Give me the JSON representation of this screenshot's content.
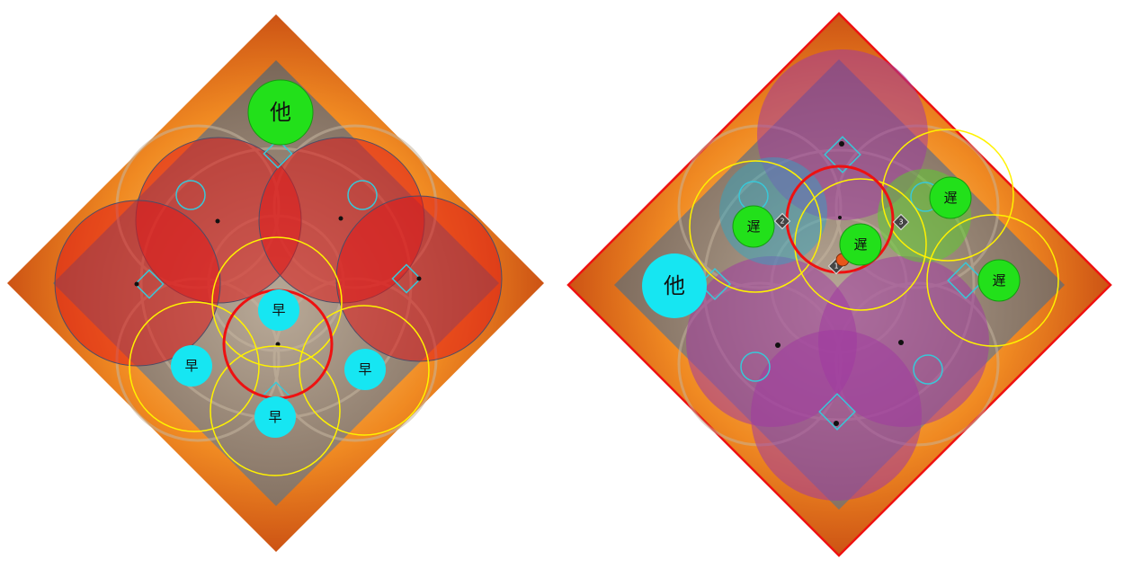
{
  "boards": [
    {
      "name": "left-diagram",
      "markers": {
        "other": "他",
        "early": "早"
      }
    },
    {
      "name": "right-diagram",
      "markers": {
        "other": "他",
        "late": "遅"
      },
      "waymarks": [
        "1",
        "2",
        "3"
      ]
    }
  ],
  "colors": {
    "fire": "#e8561a",
    "floor": "#8a7565",
    "red_aoe": "#e01818",
    "purple_aoe": "#a03aa0",
    "green_token": "#22e01a",
    "cyan_token": "#16e6f2",
    "yellow_ring": "#fff200",
    "red_ring": "#ee1111"
  },
  "icons": [
    "diamond-waymark-icon",
    "circle-waymark-icon",
    "boss-icon"
  ]
}
